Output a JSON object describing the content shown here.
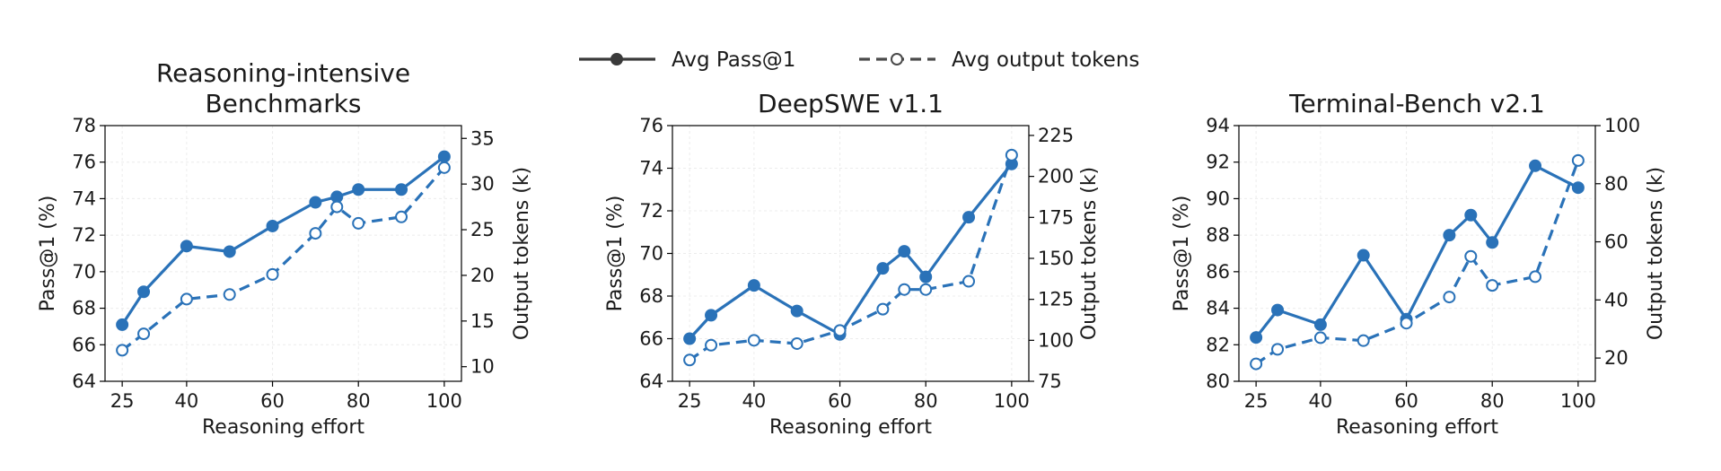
{
  "legend": {
    "items": [
      {
        "label": "Avg Pass@1",
        "style": "solid-filled"
      },
      {
        "label": "Avg output tokens",
        "style": "dashed-hollow"
      }
    ],
    "placement": "top-center"
  },
  "colors": {
    "series": "#2a72b8",
    "grid": "#ececec",
    "axis": "#000000"
  },
  "chart_data": [
    {
      "type": "line",
      "title": "Reasoning-intensive\nBenchmarks",
      "xlabel": "Reasoning effort",
      "ylabel": "Pass@1 (%)",
      "y2label": "Output tokens (k)",
      "xlim": [
        21,
        104
      ],
      "ylim": [
        64,
        78
      ],
      "y2lim": [
        8.4,
        36.4
      ],
      "xticks": [
        25,
        40,
        60,
        80,
        100
      ],
      "yticks": [
        64,
        66,
        68,
        70,
        72,
        74,
        76,
        78
      ],
      "y2ticks": [
        10,
        15,
        20,
        25,
        30,
        35
      ],
      "grid": true,
      "series": [
        {
          "name": "Avg Pass@1",
          "axis": "left",
          "x": [
            25,
            30,
            40,
            50,
            60,
            70,
            75,
            80,
            90,
            100
          ],
          "values": [
            67.1,
            68.9,
            71.4,
            71.1,
            72.5,
            73.8,
            74.1,
            74.5,
            74.5,
            76.3
          ]
        },
        {
          "name": "Avg output tokens",
          "axis": "right",
          "x": [
            25,
            30,
            40,
            50,
            60,
            70,
            75,
            80,
            90,
            100
          ],
          "values": [
            11.8,
            13.6,
            17.4,
            17.9,
            20.1,
            24.6,
            27.5,
            25.7,
            26.4,
            31.8
          ]
        }
      ]
    },
    {
      "type": "line",
      "title": "DeepSWE v1.1",
      "xlabel": "Reasoning effort",
      "ylabel": "Pass@1 (%)",
      "y2label": "Output tokens (k)",
      "xlim": [
        21,
        104
      ],
      "ylim": [
        64,
        76
      ],
      "y2lim": [
        75,
        231
      ],
      "xticks": [
        25,
        40,
        60,
        80,
        100
      ],
      "yticks": [
        64,
        66,
        68,
        70,
        72,
        74,
        76
      ],
      "y2ticks": [
        75,
        100,
        125,
        150,
        175,
        200,
        225
      ],
      "grid": true,
      "series": [
        {
          "name": "Avg Pass@1",
          "axis": "left",
          "x": [
            25,
            30,
            40,
            50,
            60,
            70,
            75,
            80,
            90,
            100
          ],
          "values": [
            66.0,
            67.1,
            68.5,
            67.3,
            66.2,
            69.3,
            70.1,
            68.9,
            71.7,
            74.2
          ]
        },
        {
          "name": "Avg output tokens",
          "axis": "right",
          "x": [
            25,
            30,
            40,
            50,
            60,
            70,
            75,
            80,
            90,
            100
          ],
          "values": [
            88,
            97,
            100,
            98,
            106,
            119,
            131,
            131,
            136,
            213
          ]
        }
      ]
    },
    {
      "type": "line",
      "title": "Terminal-Bench v2.1",
      "xlabel": "Reasoning effort",
      "ylabel": "Pass@1 (%)",
      "y2label": "Output tokens (k)",
      "xlim": [
        21,
        104
      ],
      "ylim": [
        80,
        94
      ],
      "y2lim": [
        12,
        100
      ],
      "xticks": [
        25,
        40,
        60,
        80,
        100
      ],
      "yticks": [
        80,
        82,
        84,
        86,
        88,
        90,
        92,
        94
      ],
      "y2ticks": [
        20,
        40,
        60,
        80,
        100
      ],
      "grid": true,
      "series": [
        {
          "name": "Avg Pass@1",
          "axis": "left",
          "x": [
            25,
            30,
            40,
            50,
            60,
            70,
            75,
            80,
            90,
            100
          ],
          "values": [
            82.4,
            83.9,
            83.1,
            86.9,
            83.4,
            88.0,
            89.1,
            87.6,
            91.8,
            90.6
          ]
        },
        {
          "name": "Avg output tokens",
          "axis": "right",
          "x": [
            25,
            30,
            40,
            50,
            60,
            70,
            75,
            80,
            90,
            100
          ],
          "values": [
            18,
            23,
            27,
            26,
            32,
            41,
            55,
            45,
            48,
            88
          ]
        }
      ]
    }
  ]
}
